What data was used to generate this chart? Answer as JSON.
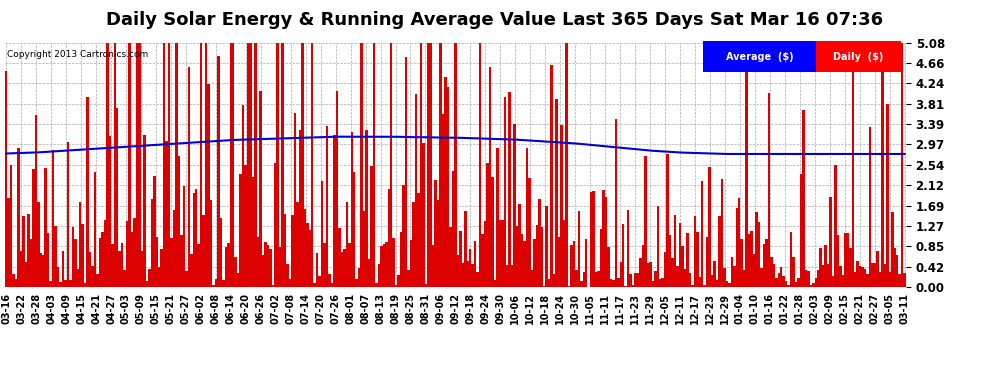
{
  "title": "Daily Solar Energy & Running Average Value Last 365 Days Sat Mar 16 07:36",
  "copyright": "Copyright 2013 Cartronics.com",
  "legend_avg": "Average  ($)",
  "legend_daily": "Daily  ($)",
  "ylim": [
    0.0,
    5.08
  ],
  "yticks": [
    0.0,
    0.42,
    0.85,
    1.27,
    1.69,
    2.12,
    2.54,
    2.97,
    3.39,
    3.81,
    4.24,
    4.66,
    5.08
  ],
  "bar_color": "#dd0000",
  "avg_color": "#0000cc",
  "bg_color": "#ffffff",
  "grid_color": "#aaaaaa",
  "title_fontsize": 13,
  "tick_fontsize": 8.5,
  "x_labels": [
    "03-16",
    "03-22",
    "03-28",
    "04-03",
    "04-09",
    "04-15",
    "04-21",
    "04-27",
    "05-03",
    "05-09",
    "05-15",
    "05-21",
    "05-27",
    "06-02",
    "06-08",
    "06-14",
    "06-20",
    "06-26",
    "07-02",
    "07-08",
    "07-14",
    "07-20",
    "07-26",
    "08-01",
    "08-07",
    "08-13",
    "08-19",
    "08-25",
    "08-31",
    "09-06",
    "09-12",
    "09-18",
    "09-24",
    "09-30",
    "10-06",
    "10-12",
    "10-18",
    "10-24",
    "10-30",
    "11-05",
    "11-11",
    "11-17",
    "11-23",
    "11-29",
    "12-05",
    "12-11",
    "12-17",
    "12-23",
    "12-29",
    "01-04",
    "01-10",
    "01-16",
    "01-22",
    "01-28",
    "02-03",
    "02-09",
    "02-15",
    "02-21",
    "02-27",
    "03-05",
    "03-11"
  ],
  "avg_line_values": [
    2.78,
    2.79,
    2.8,
    2.82,
    2.84,
    2.86,
    2.88,
    2.9,
    2.92,
    2.94,
    2.96,
    2.98,
    3.0,
    3.02,
    3.04,
    3.06,
    3.07,
    3.08,
    3.09,
    3.1,
    3.11,
    3.12,
    3.13,
    3.13,
    3.13,
    3.13,
    3.13,
    3.12,
    3.12,
    3.11,
    3.11,
    3.1,
    3.09,
    3.08,
    3.07,
    3.05,
    3.03,
    3.01,
    2.99,
    2.96,
    2.93,
    2.9,
    2.87,
    2.84,
    2.82,
    2.8,
    2.79,
    2.78,
    2.77,
    2.77,
    2.77,
    2.77,
    2.77,
    2.77,
    2.77,
    2.77,
    2.77,
    2.77,
    2.77,
    2.77,
    2.77
  ]
}
